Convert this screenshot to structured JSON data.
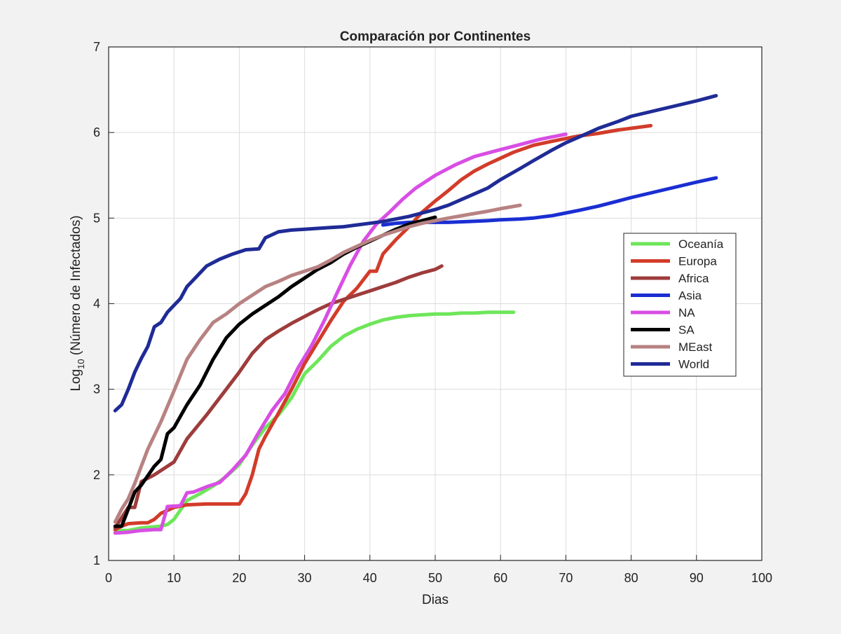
{
  "chart_data": {
    "type": "line",
    "title": "Comparación por Continentes",
    "xlabel": "Dias",
    "ylabel": "Log",
    "ylabel_sub": "10",
    "ylabel_rest": " (Número de Infectados)",
    "xlim": [
      0,
      100
    ],
    "ylim": [
      1,
      7
    ],
    "xticks": [
      0,
      10,
      20,
      30,
      40,
      50,
      60,
      70,
      80,
      90,
      100
    ],
    "yticks": [
      1,
      2,
      3,
      4,
      5,
      6,
      7
    ],
    "grid": true,
    "legend_position": "right",
    "series": [
      {
        "name": "Oceanía",
        "color": "#6ee65a",
        "x": [
          1,
          3,
          5,
          8,
          9,
          10,
          12,
          14,
          16,
          18,
          20,
          22,
          24,
          26,
          28,
          30,
          32,
          34,
          36,
          38,
          40,
          42,
          44,
          46,
          48,
          50,
          52,
          54,
          56,
          58,
          60,
          62
        ],
        "y": [
          1.35,
          1.35,
          1.38,
          1.4,
          1.42,
          1.48,
          1.7,
          1.78,
          1.87,
          1.98,
          2.12,
          2.35,
          2.55,
          2.7,
          2.9,
          3.18,
          3.33,
          3.5,
          3.62,
          3.7,
          3.76,
          3.81,
          3.84,
          3.86,
          3.87,
          3.88,
          3.88,
          3.89,
          3.89,
          3.9,
          3.9,
          3.9
        ]
      },
      {
        "name": "Europa",
        "color": "#d23c2a",
        "x": [
          1,
          2,
          3,
          5,
          6,
          7,
          8,
          10,
          12,
          15,
          18,
          20,
          21,
          22,
          23,
          24,
          26,
          28,
          30,
          32,
          34,
          36,
          38,
          40,
          41,
          42,
          44,
          46,
          48,
          50,
          52,
          54,
          56,
          58,
          60,
          62,
          65,
          68,
          70,
          72,
          75,
          78,
          80,
          83
        ],
        "y": [
          1.36,
          1.4,
          1.43,
          1.44,
          1.44,
          1.48,
          1.55,
          1.62,
          1.65,
          1.66,
          1.66,
          1.66,
          1.78,
          2.0,
          2.3,
          2.45,
          2.72,
          3.0,
          3.3,
          3.55,
          3.8,
          4.03,
          4.18,
          4.38,
          4.38,
          4.58,
          4.75,
          4.9,
          5.07,
          5.2,
          5.32,
          5.45,
          5.55,
          5.63,
          5.7,
          5.77,
          5.85,
          5.9,
          5.93,
          5.96,
          5.99,
          6.03,
          6.05,
          6.08
        ]
      },
      {
        "name": "Africa",
        "color": "#9e3c3c",
        "x": [
          1,
          2,
          3,
          4,
          5,
          7,
          10,
          12,
          15,
          18,
          20,
          22,
          24,
          26,
          28,
          30,
          32,
          34,
          36,
          38,
          40,
          42,
          44,
          46,
          48,
          50,
          51
        ],
        "y": [
          1.38,
          1.5,
          1.62,
          1.62,
          1.92,
          2.0,
          2.15,
          2.42,
          2.7,
          3.0,
          3.2,
          3.42,
          3.58,
          3.68,
          3.77,
          3.85,
          3.93,
          4.0,
          4.05,
          4.1,
          4.15,
          4.2,
          4.25,
          4.31,
          4.36,
          4.4,
          4.44
        ]
      },
      {
        "name": "Asia",
        "color": "#1a2ed2",
        "x": [
          42,
          44,
          46,
          48,
          50,
          52,
          55,
          58,
          60,
          63,
          65,
          68,
          70,
          72,
          75,
          78,
          80,
          85,
          90,
          93
        ],
        "y": [
          4.92,
          4.94,
          4.95,
          4.95,
          4.95,
          4.95,
          4.96,
          4.97,
          4.98,
          4.99,
          5.0,
          5.03,
          5.06,
          5.09,
          5.14,
          5.2,
          5.24,
          5.33,
          5.42,
          5.47
        ]
      },
      {
        "name": "NA",
        "color": "#d84ee4",
        "x": [
          1,
          3,
          5,
          7,
          8,
          9,
          11,
          12,
          13,
          15,
          17,
          19,
          21,
          23,
          25,
          27,
          29,
          31,
          33,
          35,
          37,
          39,
          41,
          43,
          45,
          47,
          50,
          53,
          56,
          60,
          63,
          66,
          70
        ],
        "y": [
          1.32,
          1.33,
          1.35,
          1.36,
          1.36,
          1.63,
          1.64,
          1.79,
          1.8,
          1.86,
          1.91,
          2.06,
          2.23,
          2.5,
          2.75,
          2.95,
          3.25,
          3.5,
          3.8,
          4.13,
          4.45,
          4.73,
          4.93,
          5.07,
          5.22,
          5.35,
          5.5,
          5.62,
          5.72,
          5.8,
          5.86,
          5.92,
          5.98
        ]
      },
      {
        "name": "SA",
        "color": "#000000",
        "x": [
          1,
          2,
          3,
          4,
          5,
          7,
          8,
          9,
          10,
          12,
          14,
          16,
          18,
          20,
          22,
          24,
          26,
          28,
          30,
          32,
          34,
          36,
          38,
          40,
          42,
          44,
          46,
          48,
          50
        ],
        "y": [
          1.4,
          1.4,
          1.6,
          1.8,
          1.88,
          2.1,
          2.18,
          2.48,
          2.55,
          2.82,
          3.05,
          3.35,
          3.6,
          3.76,
          3.88,
          3.98,
          4.08,
          4.2,
          4.3,
          4.4,
          4.48,
          4.58,
          4.66,
          4.73,
          4.8,
          4.87,
          4.93,
          4.97,
          5.01
        ]
      },
      {
        "name": "MEast",
        "color": "#b88282",
        "x": [
          1,
          2,
          3,
          4,
          6,
          8,
          10,
          12,
          14,
          16,
          18,
          20,
          22,
          24,
          26,
          28,
          30,
          32,
          34,
          36,
          38,
          40,
          42,
          44,
          46,
          48,
          50,
          52,
          55,
          58,
          60,
          63
        ],
        "y": [
          1.45,
          1.6,
          1.72,
          1.9,
          2.3,
          2.62,
          2.98,
          3.35,
          3.58,
          3.78,
          3.88,
          4.0,
          4.1,
          4.2,
          4.26,
          4.33,
          4.38,
          4.43,
          4.51,
          4.6,
          4.67,
          4.74,
          4.8,
          4.85,
          4.9,
          4.94,
          4.97,
          5.0,
          5.04,
          5.08,
          5.11,
          5.15
        ]
      },
      {
        "name": "World",
        "color": "#1f2b96",
        "x": [
          1,
          2,
          3,
          4,
          5,
          6,
          7,
          8,
          9,
          10,
          11,
          12,
          13,
          14,
          15,
          17,
          19,
          21,
          23,
          24,
          26,
          28,
          30,
          32,
          34,
          36,
          38,
          40,
          42,
          44,
          46,
          48,
          50,
          52,
          55,
          58,
          60,
          63,
          65,
          68,
          70,
          73,
          75,
          78,
          80,
          85,
          90,
          93
        ],
        "y": [
          2.75,
          2.82,
          3.0,
          3.2,
          3.36,
          3.5,
          3.73,
          3.78,
          3.9,
          3.98,
          4.06,
          4.2,
          4.28,
          4.36,
          4.44,
          4.52,
          4.58,
          4.63,
          4.64,
          4.77,
          4.84,
          4.86,
          4.87,
          4.88,
          4.89,
          4.9,
          4.92,
          4.94,
          4.96,
          4.99,
          5.02,
          5.06,
          5.1,
          5.15,
          5.25,
          5.35,
          5.45,
          5.58,
          5.67,
          5.8,
          5.88,
          5.98,
          6.05,
          6.13,
          6.19,
          6.28,
          6.37,
          6.43
        ]
      }
    ]
  }
}
